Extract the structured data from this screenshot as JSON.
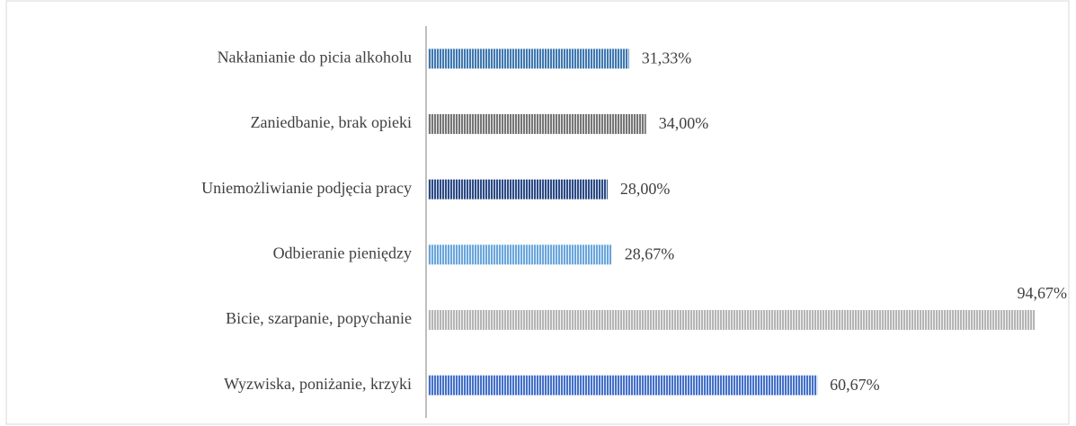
{
  "chart_data": {
    "type": "bar",
    "orientation": "horizontal",
    "categories": [
      "Nakłanianie do picia alkoholu",
      "Zaniedbanie, brak opieki",
      "Uniemożliwianie podjęcia pracy",
      "Odbieranie pieniędzy",
      "Bicie, szarpanie, popychanie",
      "Wyzwiska, poniżanie, krzyki"
    ],
    "values": [
      31.33,
      34.0,
      28.0,
      28.67,
      94.67,
      60.67
    ],
    "value_labels": [
      "31,33%",
      "34,00%",
      "28,00%",
      "28,67%",
      "94,67%",
      "60,67%"
    ],
    "colors": [
      "#3f78b0",
      "#767676",
      "#2b4a86",
      "#6aa6dc",
      "#b5b5b5",
      "#4470c8"
    ],
    "xlim": [
      0,
      100
    ]
  }
}
